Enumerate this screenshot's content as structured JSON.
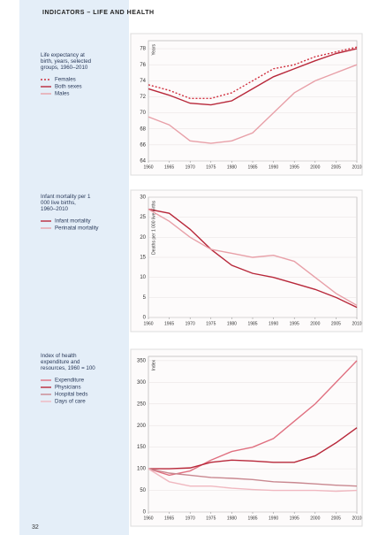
{
  "header": {
    "title": "INDICATORS – LIFE AND HEALTH"
  },
  "page_number": "32",
  "chart_data": [
    {
      "type": "line",
      "title": "Life expectancy at birth, years, selected groups, 1960–2010",
      "y_label": "Years",
      "x": [
        1960,
        1965,
        1970,
        1975,
        1980,
        1985,
        1990,
        1995,
        2000,
        2005,
        2010
      ],
      "xlim": [
        1960,
        2010
      ],
      "xticks": [
        1960,
        1965,
        1970,
        1975,
        1980,
        1985,
        1990,
        1995,
        2000,
        2005,
        2010
      ],
      "ylim": [
        64,
        79
      ],
      "yticks": [
        64,
        66,
        68,
        70,
        72,
        74,
        76,
        78
      ],
      "grid": true,
      "series": [
        {
          "name": "Females",
          "color": "#d0303f",
          "dash": true,
          "values": [
            73.5,
            72.8,
            71.8,
            71.8,
            72.5,
            74,
            75.5,
            76,
            77,
            77.6,
            78.2
          ]
        },
        {
          "name": "Both sexes",
          "color": "#b8283a",
          "dash": false,
          "values": [
            73,
            72.2,
            71.2,
            71,
            71.5,
            73,
            74.5,
            75.5,
            76.5,
            77.4,
            78
          ]
        },
        {
          "name": "Males",
          "color": "#e8a0a8",
          "dash": false,
          "values": [
            69.5,
            68.5,
            66.5,
            66.2,
            66.5,
            67.5,
            70,
            72.5,
            74,
            75,
            76
          ]
        }
      ]
    },
    {
      "type": "line",
      "title": "Infant mortality per 1 000 live births, 1960–2010",
      "y_label": "Deaths per 1 000 live births",
      "x": [
        1960,
        1965,
        1970,
        1975,
        1980,
        1985,
        1990,
        1995,
        2000,
        2005,
        2010
      ],
      "xlim": [
        1960,
        2010
      ],
      "xticks": [
        1960,
        1965,
        1970,
        1975,
        1980,
        1985,
        1990,
        1995,
        2000,
        2005,
        2010
      ],
      "ylim": [
        0,
        30
      ],
      "yticks": [
        0,
        5,
        10,
        15,
        20,
        25,
        30
      ],
      "grid": true,
      "series": [
        {
          "name": "Infant mortality",
          "color": "#b8283a",
          "dash": false,
          "values": [
            27,
            26,
            22,
            17,
            13,
            11,
            10,
            8.5,
            7,
            5,
            2.5
          ]
        },
        {
          "name": "Perinatal mortality",
          "color": "#e8a0a8",
          "dash": false,
          "values": [
            27,
            24,
            20,
            17,
            16,
            15,
            15.5,
            14,
            10,
            6,
            3
          ]
        }
      ]
    },
    {
      "type": "line",
      "title": "Index of health expenditure and resources, 1960 = 100",
      "y_label": "Index",
      "x": [
        1960,
        1965,
        1970,
        1975,
        1980,
        1985,
        1990,
        1995,
        2000,
        2005,
        2010
      ],
      "xlim": [
        1960,
        2010
      ],
      "xticks": [
        1960,
        1965,
        1970,
        1975,
        1980,
        1985,
        1990,
        1995,
        2000,
        2005,
        2010
      ],
      "ylim": [
        0,
        360
      ],
      "yticks": [
        0,
        50,
        100,
        150,
        200,
        250,
        300,
        350
      ],
      "grid": true,
      "series": [
        {
          "name": "Expenditure",
          "color": "#e07080",
          "dash": false,
          "values": [
            100,
            85,
            95,
            120,
            140,
            150,
            170,
            210,
            250,
            300,
            350
          ]
        },
        {
          "name": "Physicians",
          "color": "#b8283a",
          "dash": false,
          "values": [
            100,
            100,
            102,
            115,
            120,
            118,
            115,
            115,
            130,
            160,
            195
          ]
        },
        {
          "name": "Hospital beds",
          "color": "#c98890",
          "dash": false,
          "values": [
            100,
            90,
            85,
            80,
            78,
            75,
            70,
            68,
            65,
            62,
            60
          ]
        },
        {
          "name": "Days of care",
          "color": "#f0b8c0",
          "dash": false,
          "values": [
            100,
            70,
            60,
            60,
            55,
            52,
            50,
            50,
            50,
            48,
            50
          ]
        }
      ]
    }
  ]
}
